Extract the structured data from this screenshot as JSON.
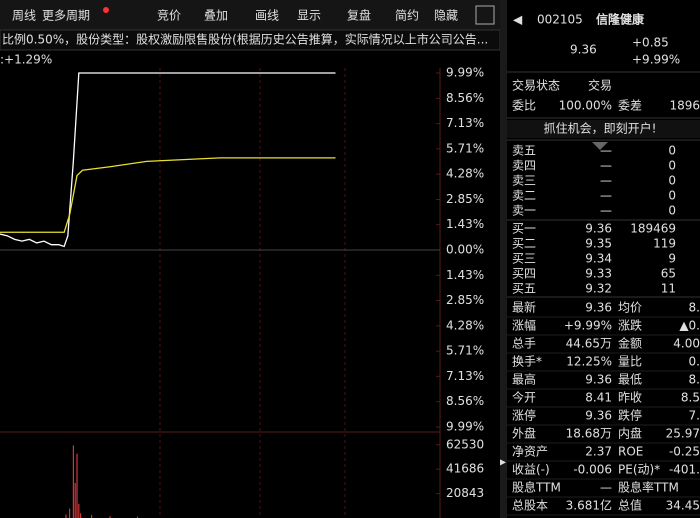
{
  "toolbar": {
    "left": [
      "周线",
      "更多周期"
    ],
    "right": [
      "竞价",
      "叠加",
      "画线",
      "显示",
      "复盘",
      "简约",
      "隐藏"
    ]
  },
  "info_line": "比例0.50%，股份类型：股权激励限售股份(根据历史公告推算，实际情况以上市公司公告...",
  "change_label": ":+1.29%",
  "chart": {
    "type": "line",
    "xlim": [
      0,
      240
    ],
    "ylim": [
      -9.99,
      9.99
    ],
    "yticks": [
      {
        "value": 9.99,
        "label": "9.99%"
      },
      {
        "value": 8.56,
        "label": "8.56%"
      },
      {
        "value": 7.13,
        "label": "7.13%"
      },
      {
        "value": 5.71,
        "label": "5.71%"
      },
      {
        "value": 4.28,
        "label": "4.28%"
      },
      {
        "value": 2.85,
        "label": "2.85%"
      },
      {
        "value": 1.43,
        "label": "1.43%"
      },
      {
        "value": 0,
        "label": "0.00%"
      },
      {
        "value": -1.43,
        "label": "1.43%"
      },
      {
        "value": -2.85,
        "label": "2.85%"
      },
      {
        "value": -4.28,
        "label": "4.28%"
      },
      {
        "value": -5.71,
        "label": "5.71%"
      },
      {
        "value": -7.13,
        "label": "7.13%"
      },
      {
        "value": -8.56,
        "label": "8.56%"
      },
      {
        "value": -9.99,
        "label": "9.99%"
      }
    ],
    "up_color": "#ff4040",
    "flat_color": "#ffffff",
    "down_color": "#20d020",
    "series": [
      {
        "color": "#ffffff",
        "x": [
          0,
          4,
          8,
          12,
          16,
          20,
          24,
          28,
          32,
          35,
          37,
          40,
          43,
          183
        ],
        "values": [
          0.9,
          0.8,
          0.6,
          0.5,
          0.6,
          0.4,
          0.5,
          0.3,
          0.3,
          0.2,
          0.8,
          5.0,
          9.99,
          9.99
        ]
      },
      {
        "color": "#e8e030",
        "x": [
          0,
          35,
          38,
          42,
          45,
          60,
          80,
          100,
          120,
          150,
          183
        ],
        "values": [
          1.0,
          1.0,
          2.0,
          4.2,
          4.5,
          4.7,
          5.0,
          5.1,
          5.2,
          5.2,
          5.2
        ]
      }
    ],
    "volume": {
      "color": "#ff4040",
      "ylim": [
        0,
        70000
      ],
      "yticks": [
        62530,
        41686,
        20843
      ],
      "x": [
        36,
        38,
        40,
        41,
        42,
        43,
        44,
        50,
        60,
        75
      ],
      "values": [
        3000,
        8000,
        62000,
        30000,
        55000,
        12000,
        4000,
        2500,
        1500,
        1200
      ]
    }
  },
  "quote": {
    "code": "002105",
    "name": "信隆健康",
    "price": "9.36",
    "change": "+0.85",
    "change_pct": "+9.99%"
  },
  "status": [
    [
      "交易状态",
      "交易"
    ],
    [
      "委比",
      "100.00%",
      "委差",
      "1896"
    ]
  ],
  "banner": "抓住机会，即刻开户!",
  "sell": [
    [
      "卖五",
      "—",
      "0"
    ],
    [
      "卖四",
      "—",
      "0"
    ],
    [
      "卖三",
      "—",
      "0"
    ],
    [
      "卖二",
      "—",
      "0"
    ],
    [
      "卖一",
      "—",
      "0"
    ]
  ],
  "buy": [
    [
      "买一",
      "9.36",
      "189469"
    ],
    [
      "买二",
      "9.35",
      "119"
    ],
    [
      "买三",
      "9.34",
      "9"
    ],
    [
      "买四",
      "9.33",
      "65"
    ],
    [
      "买五",
      "9.32",
      "11"
    ]
  ],
  "stats": [
    [
      "最新",
      "9.36",
      "均价",
      "8."
    ],
    [
      "涨幅",
      "+9.99%",
      "涨跌",
      "▲0."
    ],
    [
      "总手",
      "44.65万",
      "金额",
      "4.00"
    ],
    [
      "换手*",
      "12.25%",
      "量比",
      "0."
    ],
    [
      "最高",
      "9.36",
      "最低",
      "8."
    ],
    [
      "今开",
      "8.41",
      "昨收",
      "8.5"
    ],
    [
      "涨停",
      "9.36",
      "跌停",
      "7."
    ],
    [
      "外盘",
      "18.68万",
      "内盘",
      "25.97"
    ],
    [
      "净资产",
      "2.37",
      "ROE",
      "-0.25"
    ],
    [
      "收益(-)",
      "-0.006",
      "PE(动)*",
      "-401."
    ],
    [
      "股息TTM",
      "—",
      "股息率TTM",
      ""
    ],
    [
      "总股本",
      "3.681亿",
      "总值",
      "34.45"
    ]
  ],
  "stats_colors": [
    [
      "#ff4040",
      "#ff4040"
    ],
    [
      "#ff4040",
      "#ff4040"
    ],
    [
      "#e0e0e0",
      "#30d0e0"
    ],
    [
      "#e0e0e0",
      "#e0e0e0"
    ],
    [
      "#ff4040",
      "#ff4040"
    ],
    [
      "#20d020",
      "#e0e0e0"
    ],
    [
      "#ff4040",
      "#20d020"
    ],
    [
      "#ff4040",
      "#20d020"
    ],
    [
      "#e0e0e0",
      "#e0e0e0"
    ],
    [
      "#e0e0e0",
      "#e0e0e0"
    ],
    [
      "#e0e0e0",
      "#e0e0e0"
    ],
    [
      "#e0e0e0",
      "#e0e0e0"
    ]
  ]
}
